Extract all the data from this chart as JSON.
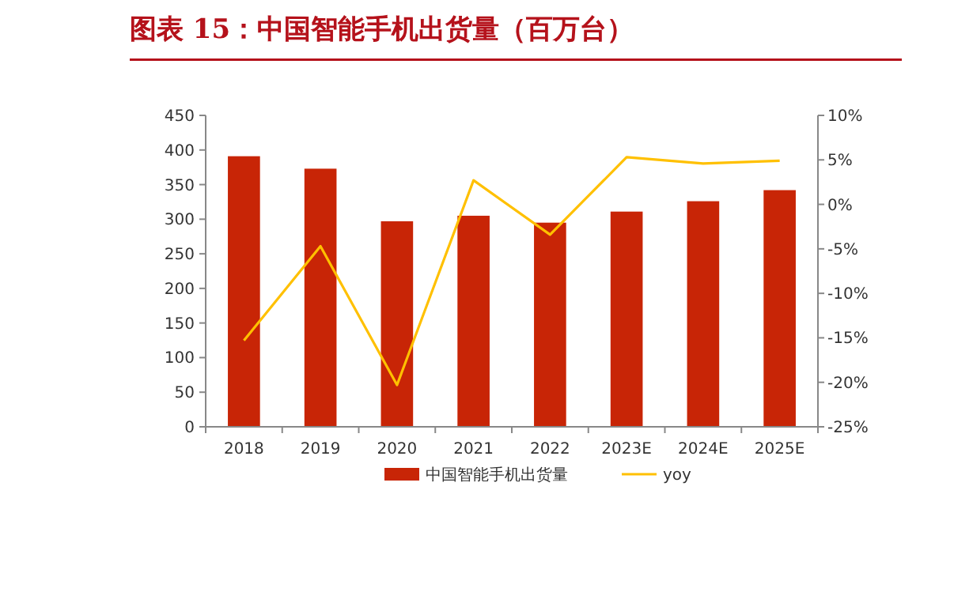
{
  "chart_data": {
    "type": "bar",
    "title": "图表 15：中国智能手机出货量（百万台）",
    "categories": [
      "2018",
      "2019",
      "2020",
      "2021",
      "2022",
      "2023E",
      "2024E",
      "2025E"
    ],
    "series": [
      {
        "name": "中国智能手机出货量",
        "color": "#c82506",
        "values": [
          391,
          373,
          297,
          305,
          295,
          311,
          326,
          342
        ]
      },
      {
        "name": "yoy",
        "type": "line",
        "axis": "y2",
        "color": "#ffc000",
        "values": [
          -15.3,
          -4.7,
          -20.3,
          2.7,
          -3.4,
          5.3,
          4.6,
          4.9
        ]
      }
    ],
    "ylim": [
      0,
      450
    ],
    "yticks": [
      0,
      50,
      100,
      150,
      200,
      250,
      300,
      350,
      400,
      450
    ],
    "y2lim": [
      -25,
      10
    ],
    "y2ticks": [
      {
        "value": -25,
        "label": "-25%"
      },
      {
        "value": -20,
        "label": "-20%"
      },
      {
        "value": -15,
        "label": "-15%"
      },
      {
        "value": -10,
        "label": "-10%"
      },
      {
        "value": -5,
        "label": "-5%"
      },
      {
        "value": 0,
        "label": "0%"
      },
      {
        "value": 5,
        "label": "5%"
      },
      {
        "value": 10,
        "label": "10%"
      }
    ],
    "legend": "bottom",
    "grid": false
  }
}
